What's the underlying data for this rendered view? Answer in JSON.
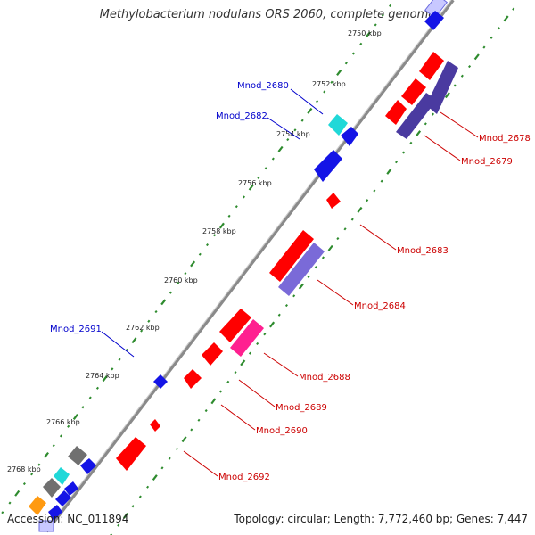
{
  "title": "Methylobacterium nodulans ORS 2060, complete genome",
  "accession": "Accession: NC_011894",
  "topology": "Topology: circular; Length: 7,772,460 bp; Genes: 7,447",
  "colors": {
    "backbone": "#808080",
    "tick": "#2e8b2e",
    "red_gene": "#ff0000",
    "blue_gene": "#0000ee",
    "purple_gene": "#7a6ad8",
    "dark_purple_gene": "#4a3aa0",
    "cyan_gene": "#20d8d8",
    "magenta_gene": "#ff2090",
    "orange_gene": "#ff9a10",
    "grey_gene": "#707070",
    "blue_label": "#0000cc",
    "red_label": "#cc0000"
  },
  "kbp_labels": [
    "2750 kbp",
    "2752 kbp",
    "2754 kbp",
    "2756 kbp",
    "2758 kbp",
    "2760 kbp",
    "2762 kbp",
    "2764 kbp",
    "2766 kbp",
    "2768 kbp"
  ],
  "gene_labels_blue": [
    "Mnod_2680",
    "Mnod_2682",
    "Mnod_2691"
  ],
  "gene_labels_red": [
    "Mnod_2678",
    "Mnod_2679",
    "Mnod_2683",
    "Mnod_2684",
    "Mnod_2688",
    "Mnod_2689",
    "Mnod_2690",
    "Mnod_2692"
  ]
}
